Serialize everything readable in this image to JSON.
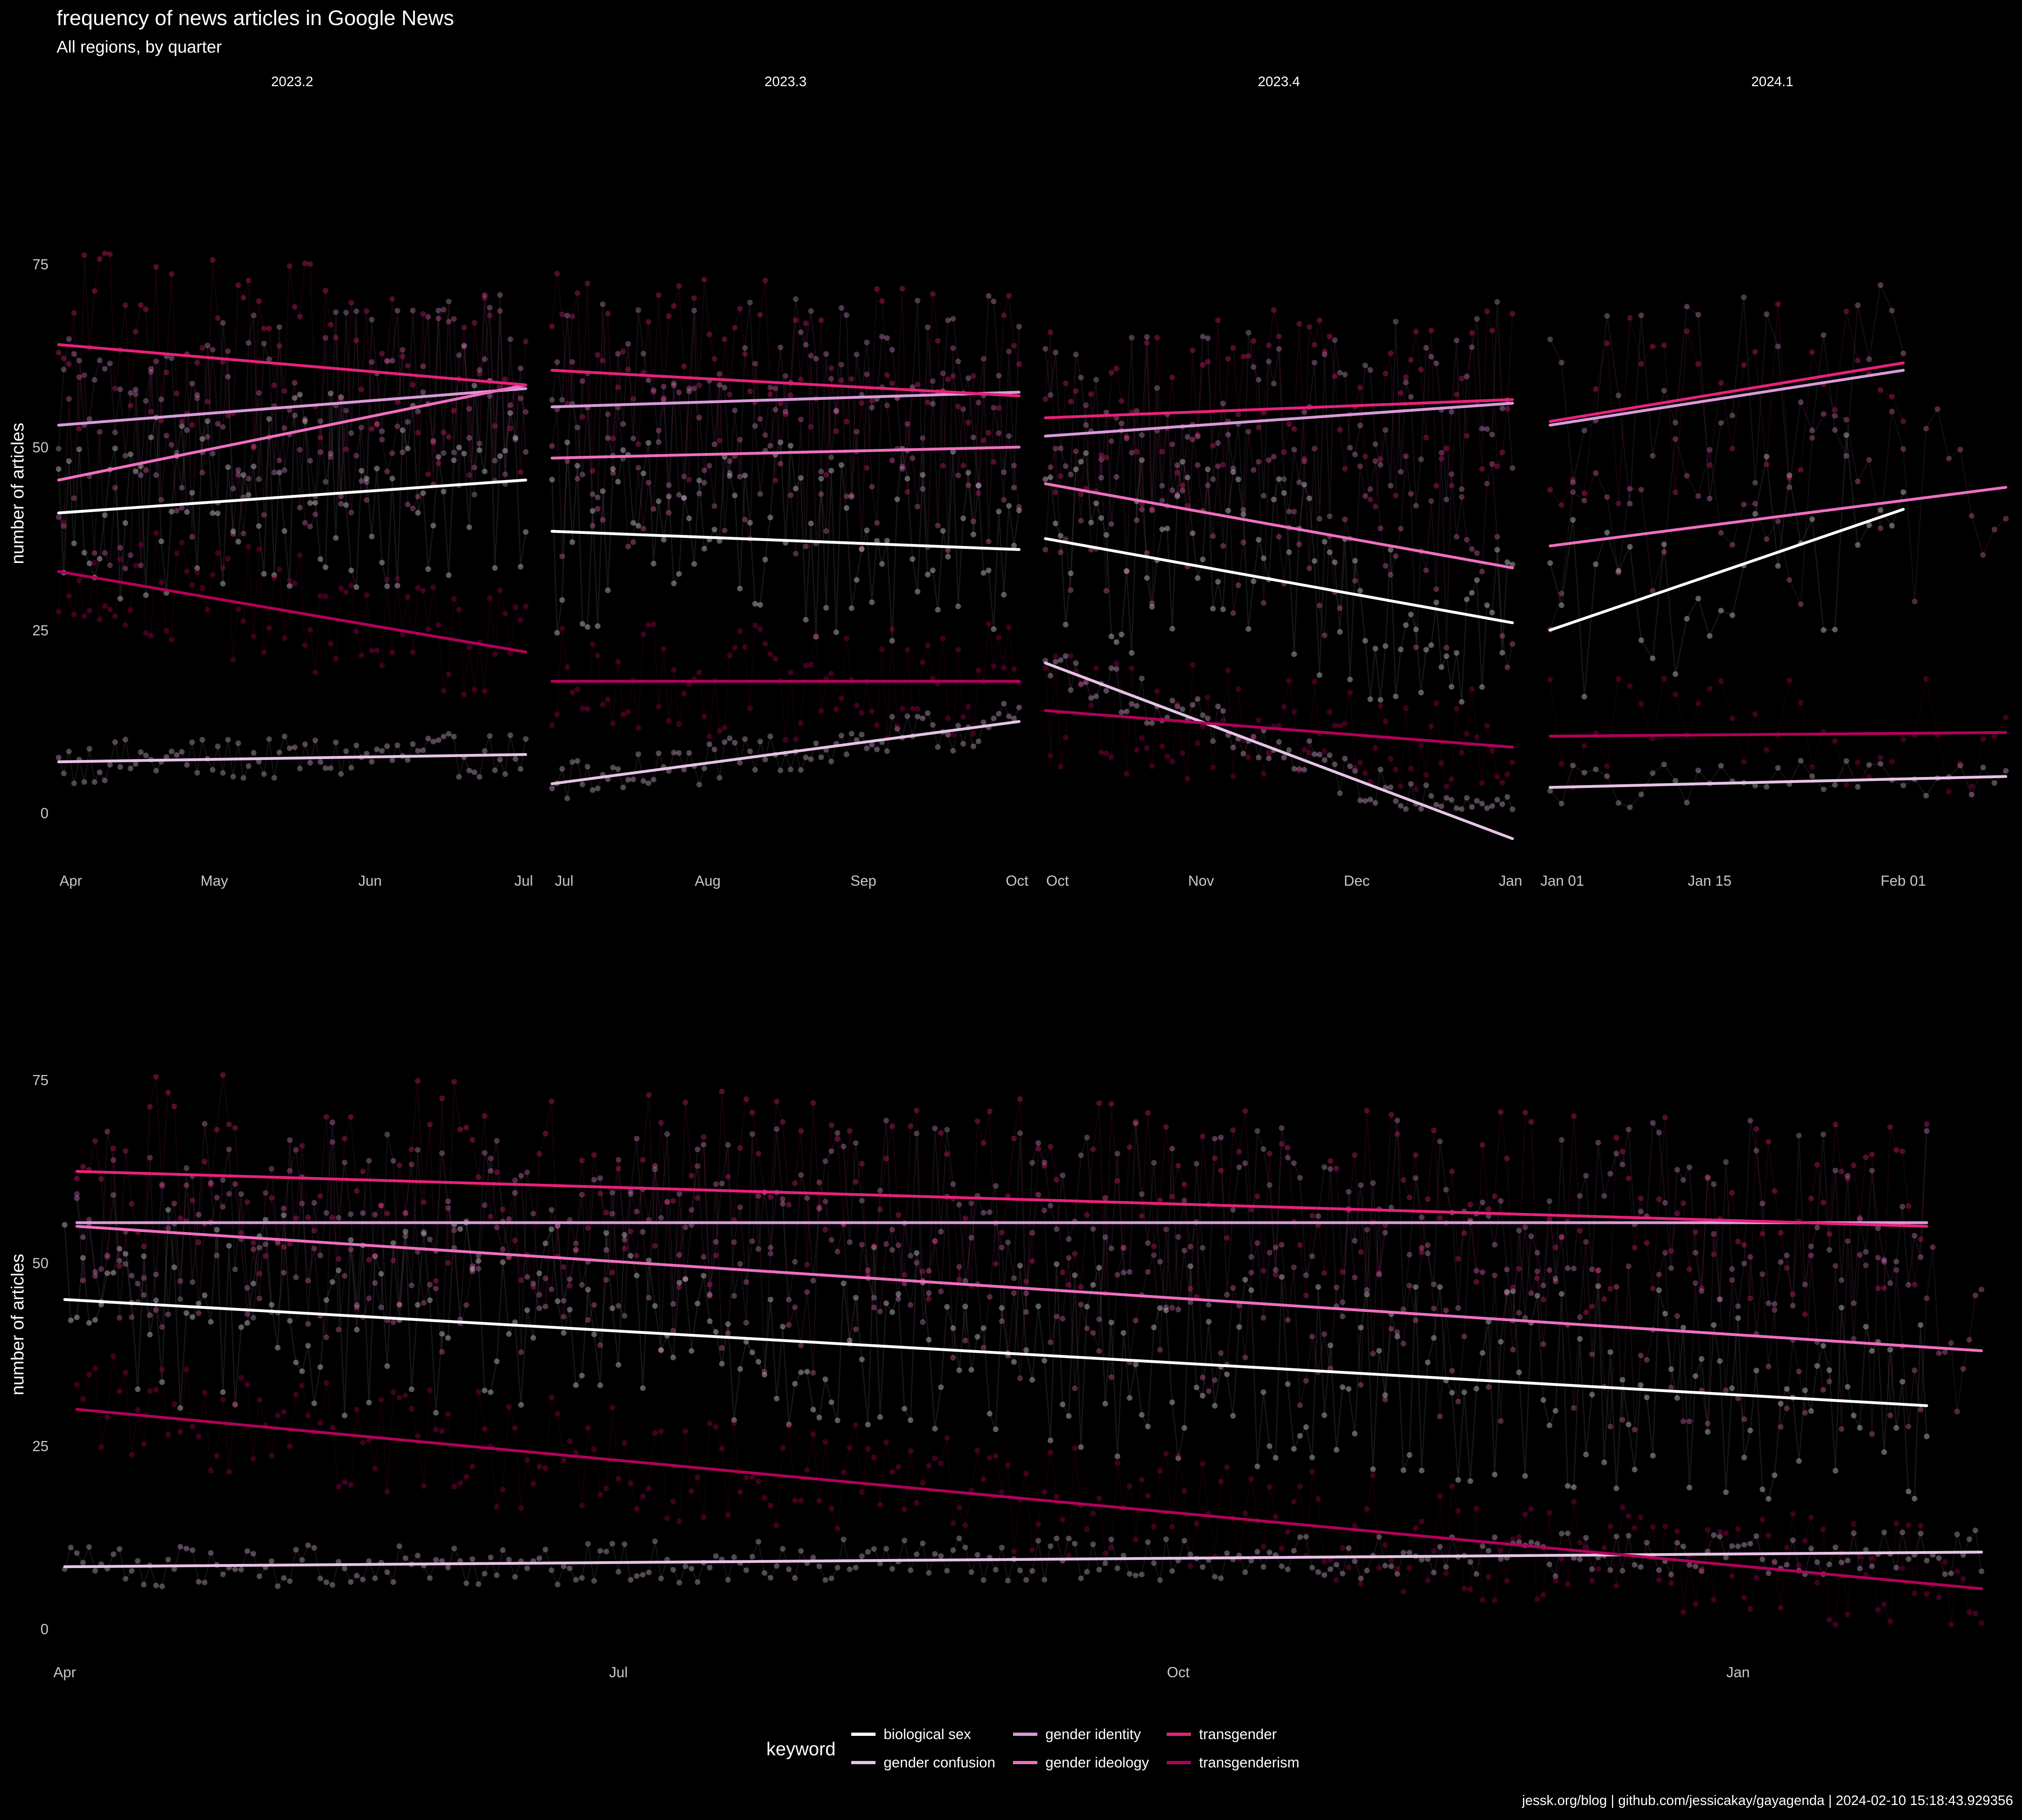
{
  "title": "frequency of news articles in Google News",
  "subtitle": "All regions, by quarter",
  "caption": "jessk.org/blog | github.com/jessicakay/gayagenda |  2024-02-10 15:18:43.929356",
  "ylabel": "number of articles",
  "legend": {
    "title": "keyword",
    "placement": "bottom",
    "entries": [
      {
        "name": "biological sex",
        "color": "#ffffff"
      },
      {
        "name": "gender confusion",
        "color": "#e6c3e6"
      },
      {
        "name": "gender identity",
        "color": "#d99ad9"
      },
      {
        "name": "gender ideology",
        "color": "#ee6fbf"
      },
      {
        "name": "transgender",
        "color": "#e8217a"
      },
      {
        "name": "transgenderism",
        "color": "#b3005a"
      }
    ]
  },
  "chart_data": [
    {
      "type": "scatter",
      "facet": "2023.2",
      "xlim": [
        "2023-04-01",
        "2023-07-01"
      ],
      "xticks": [
        "Apr",
        "May",
        "Jun",
        "Jul"
      ],
      "ylim": [
        -8,
        97
      ],
      "yticks": [
        0,
        25,
        50,
        75
      ],
      "grid": false,
      "trend_lines": [
        {
          "name": "biological sex",
          "x": [
            "2023-04-01",
            "2023-07-01"
          ],
          "y": [
            41,
            45.5
          ]
        },
        {
          "name": "gender confusion",
          "x": [
            "2023-04-01",
            "2023-07-01"
          ],
          "y": [
            7,
            8
          ]
        },
        {
          "name": "gender identity",
          "x": [
            "2023-04-01",
            "2023-07-01"
          ],
          "y": [
            53,
            58
          ]
        },
        {
          "name": "gender ideology",
          "x": [
            "2023-04-01",
            "2023-07-01"
          ],
          "y": [
            45.5,
            58.5
          ]
        },
        {
          "name": "transgender",
          "x": [
            "2023-04-01",
            "2023-07-01"
          ],
          "y": [
            64,
            58.5
          ]
        },
        {
          "name": "transgenderism",
          "x": [
            "2023-04-01",
            "2023-07-01"
          ],
          "y": [
            33,
            22
          ]
        }
      ]
    },
    {
      "type": "scatter",
      "facet": "2023.3",
      "xlim": [
        "2023-07-01",
        "2023-10-01"
      ],
      "xticks": [
        "Jul",
        "Aug",
        "Sep",
        "Oct"
      ],
      "ylim": [
        -8,
        97
      ],
      "yticks": [
        0,
        25,
        50,
        75
      ],
      "grid": false,
      "trend_lines": [
        {
          "name": "biological sex",
          "x": [
            "2023-07-01",
            "2023-10-01"
          ],
          "y": [
            38.5,
            36
          ]
        },
        {
          "name": "gender confusion",
          "x": [
            "2023-07-01",
            "2023-10-01"
          ],
          "y": [
            4,
            12.5
          ]
        },
        {
          "name": "gender identity",
          "x": [
            "2023-07-01",
            "2023-10-01"
          ],
          "y": [
            55.5,
            57.5
          ]
        },
        {
          "name": "gender ideology",
          "x": [
            "2023-07-01",
            "2023-10-01"
          ],
          "y": [
            48.5,
            50
          ]
        },
        {
          "name": "transgender",
          "x": [
            "2023-07-01",
            "2023-10-01"
          ],
          "y": [
            60.5,
            57
          ]
        },
        {
          "name": "transgenderism",
          "x": [
            "2023-07-01",
            "2023-10-01"
          ],
          "y": [
            18,
            18
          ]
        }
      ]
    },
    {
      "type": "scatter",
      "facet": "2023.4",
      "xlim": [
        "2023-10-01",
        "2024-01-01"
      ],
      "xticks": [
        "Oct",
        "Nov",
        "Dec",
        "Jan"
      ],
      "ylim": [
        -8,
        97
      ],
      "yticks": [
        0,
        25,
        50,
        75
      ],
      "grid": false,
      "trend_lines": [
        {
          "name": "biological sex",
          "x": [
            "2023-10-01",
            "2024-01-01"
          ],
          "y": [
            37.5,
            26
          ]
        },
        {
          "name": "gender confusion",
          "x": [
            "2023-10-01",
            "2024-01-01"
          ],
          "y": [
            20.5,
            -3.5
          ]
        },
        {
          "name": "gender identity",
          "x": [
            "2023-10-01",
            "2024-01-01"
          ],
          "y": [
            51.5,
            56
          ]
        },
        {
          "name": "gender ideology",
          "x": [
            "2023-10-01",
            "2024-01-01"
          ],
          "y": [
            45,
            33.5
          ]
        },
        {
          "name": "transgender",
          "x": [
            "2023-10-01",
            "2024-01-01"
          ],
          "y": [
            54,
            56.5
          ]
        },
        {
          "name": "transgenderism",
          "x": [
            "2023-10-01",
            "2024-01-01"
          ],
          "y": [
            14,
            9
          ]
        }
      ]
    },
    {
      "type": "scatter",
      "facet": "2024.1",
      "xlim": [
        "2023-12-31",
        "2024-02-10"
      ],
      "xticks": [
        "Jan 01",
        "Jan 15",
        "Feb 01"
      ],
      "ylim": [
        -8,
        97
      ],
      "yticks": [
        0,
        25,
        50,
        75
      ],
      "grid": false,
      "trend_lines": [
        {
          "name": "biological sex",
          "x": [
            "2024-01-01",
            "2024-02-01"
          ],
          "y": [
            25,
            41.5
          ]
        },
        {
          "name": "gender confusion",
          "x": [
            "2024-01-01",
            "2024-02-10"
          ],
          "y": [
            3.5,
            5
          ]
        },
        {
          "name": "gender identity",
          "x": [
            "2024-01-01",
            "2024-02-01"
          ],
          "y": [
            53,
            60.5
          ]
        },
        {
          "name": "gender ideology",
          "x": [
            "2024-01-01",
            "2024-02-10"
          ],
          "y": [
            36.5,
            44.5
          ]
        },
        {
          "name": "transgender",
          "x": [
            "2024-01-01",
            "2024-02-01"
          ],
          "y": [
            53.5,
            61.5
          ]
        },
        {
          "name": "transgenderism",
          "x": [
            "2024-01-01",
            "2024-02-10"
          ],
          "y": [
            10.5,
            11
          ]
        }
      ]
    },
    {
      "type": "scatter",
      "facet": "all",
      "xlim": [
        "2023-03-31",
        "2024-02-14"
      ],
      "xticks": [
        "Apr",
        "Jul",
        "Oct",
        "Jan"
      ],
      "ylim": [
        -4,
        96
      ],
      "yticks": [
        0,
        25,
        50,
        75
      ],
      "grid": false,
      "trend_lines": [
        {
          "name": "biological sex",
          "x": [
            "2023-04-01",
            "2024-02-01"
          ],
          "y": [
            45,
            30.5
          ]
        },
        {
          "name": "gender confusion",
          "x": [
            "2023-04-01",
            "2024-02-10"
          ],
          "y": [
            8.5,
            10.5
          ]
        },
        {
          "name": "gender identity",
          "x": [
            "2023-04-03",
            "2024-02-01"
          ],
          "y": [
            55.5,
            55.5
          ]
        },
        {
          "name": "gender ideology",
          "x": [
            "2023-04-03",
            "2024-02-10"
          ],
          "y": [
            55,
            38
          ]
        },
        {
          "name": "transgender",
          "x": [
            "2023-04-03",
            "2024-02-01"
          ],
          "y": [
            62.5,
            55
          ]
        },
        {
          "name": "transgenderism",
          "x": [
            "2023-04-03",
            "2024-02-10"
          ],
          "y": [
            30,
            5.5
          ]
        }
      ]
    }
  ]
}
